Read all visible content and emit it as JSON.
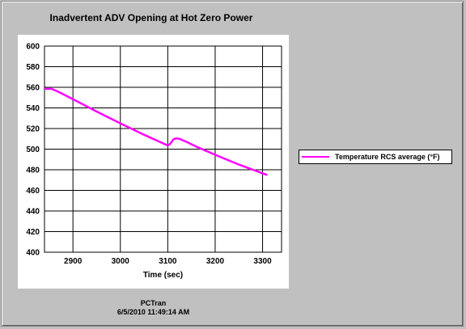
{
  "chart_data": {
    "type": "line",
    "title": "Inadvertent ADV Opening at Hot Zero Power",
    "xlabel": "Time (sec)",
    "ylabel": "",
    "xlim": [
      2840,
      3340
    ],
    "ylim": [
      400,
      600
    ],
    "xticks": [
      2900,
      3000,
      3100,
      3200,
      3300
    ],
    "yticks": [
      400,
      420,
      440,
      460,
      480,
      500,
      520,
      540,
      560,
      580,
      600
    ],
    "grid": true,
    "legend_position": "right",
    "series": [
      {
        "name": "Temperature RCS average (°F)",
        "color": "#ff00ff",
        "x": [
          2840,
          2855,
          2870,
          2900,
          2950,
          3000,
          3050,
          3100,
          3105,
          3108,
          3112,
          3118,
          3125,
          3140,
          3160,
          3200,
          3250,
          3300,
          3310
        ],
        "y": [
          558.5,
          558.5,
          555.5,
          548.5,
          536.5,
          525,
          514,
          503.5,
          505,
          507,
          509.5,
          510.5,
          510,
          507,
          502.5,
          494.5,
          485,
          476.5,
          475
        ]
      }
    ]
  },
  "footer": {
    "source": "PCTran",
    "timestamp": "6/5/2010 11:49:14 AM"
  }
}
